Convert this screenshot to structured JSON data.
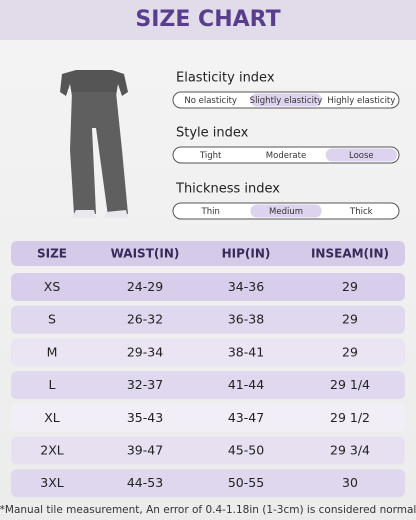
{
  "header": {
    "title": "SIZE CHART"
  },
  "indices": [
    {
      "label": "Elasticity index",
      "options": [
        "No elasticity",
        "Slightly elasticity",
        "Highly elasticity"
      ],
      "selected": 1
    },
    {
      "label": "Style index",
      "options": [
        "Tight",
        "Moderate",
        "Loose"
      ],
      "selected": 2
    },
    {
      "label": "Thickness index",
      "options": [
        "Thin",
        "Medium",
        "Thick"
      ],
      "selected": 1
    }
  ],
  "table": {
    "columns": [
      "SIZE",
      "WAIST(IN)",
      "HIP(IN)",
      "INSEAM(IN)"
    ],
    "rows": [
      [
        "XS",
        "24-29",
        "34-36",
        "29"
      ],
      [
        "S",
        "26-32",
        "36-38",
        "29"
      ],
      [
        "M",
        "29-34",
        "38-41",
        "29"
      ],
      [
        "L",
        "32-37",
        "41-44",
        "29 1/4"
      ],
      [
        "XL",
        "35-43",
        "43-47",
        "29 1/2"
      ],
      [
        "2XL",
        "39-47",
        "45-50",
        "29 3/4"
      ],
      [
        "3XL",
        "44-53",
        "50-55",
        "30"
      ]
    ]
  },
  "footnote": "*Manual tile measurement, An error of 0.4-1.18in (1-3cm) is considered normal"
}
